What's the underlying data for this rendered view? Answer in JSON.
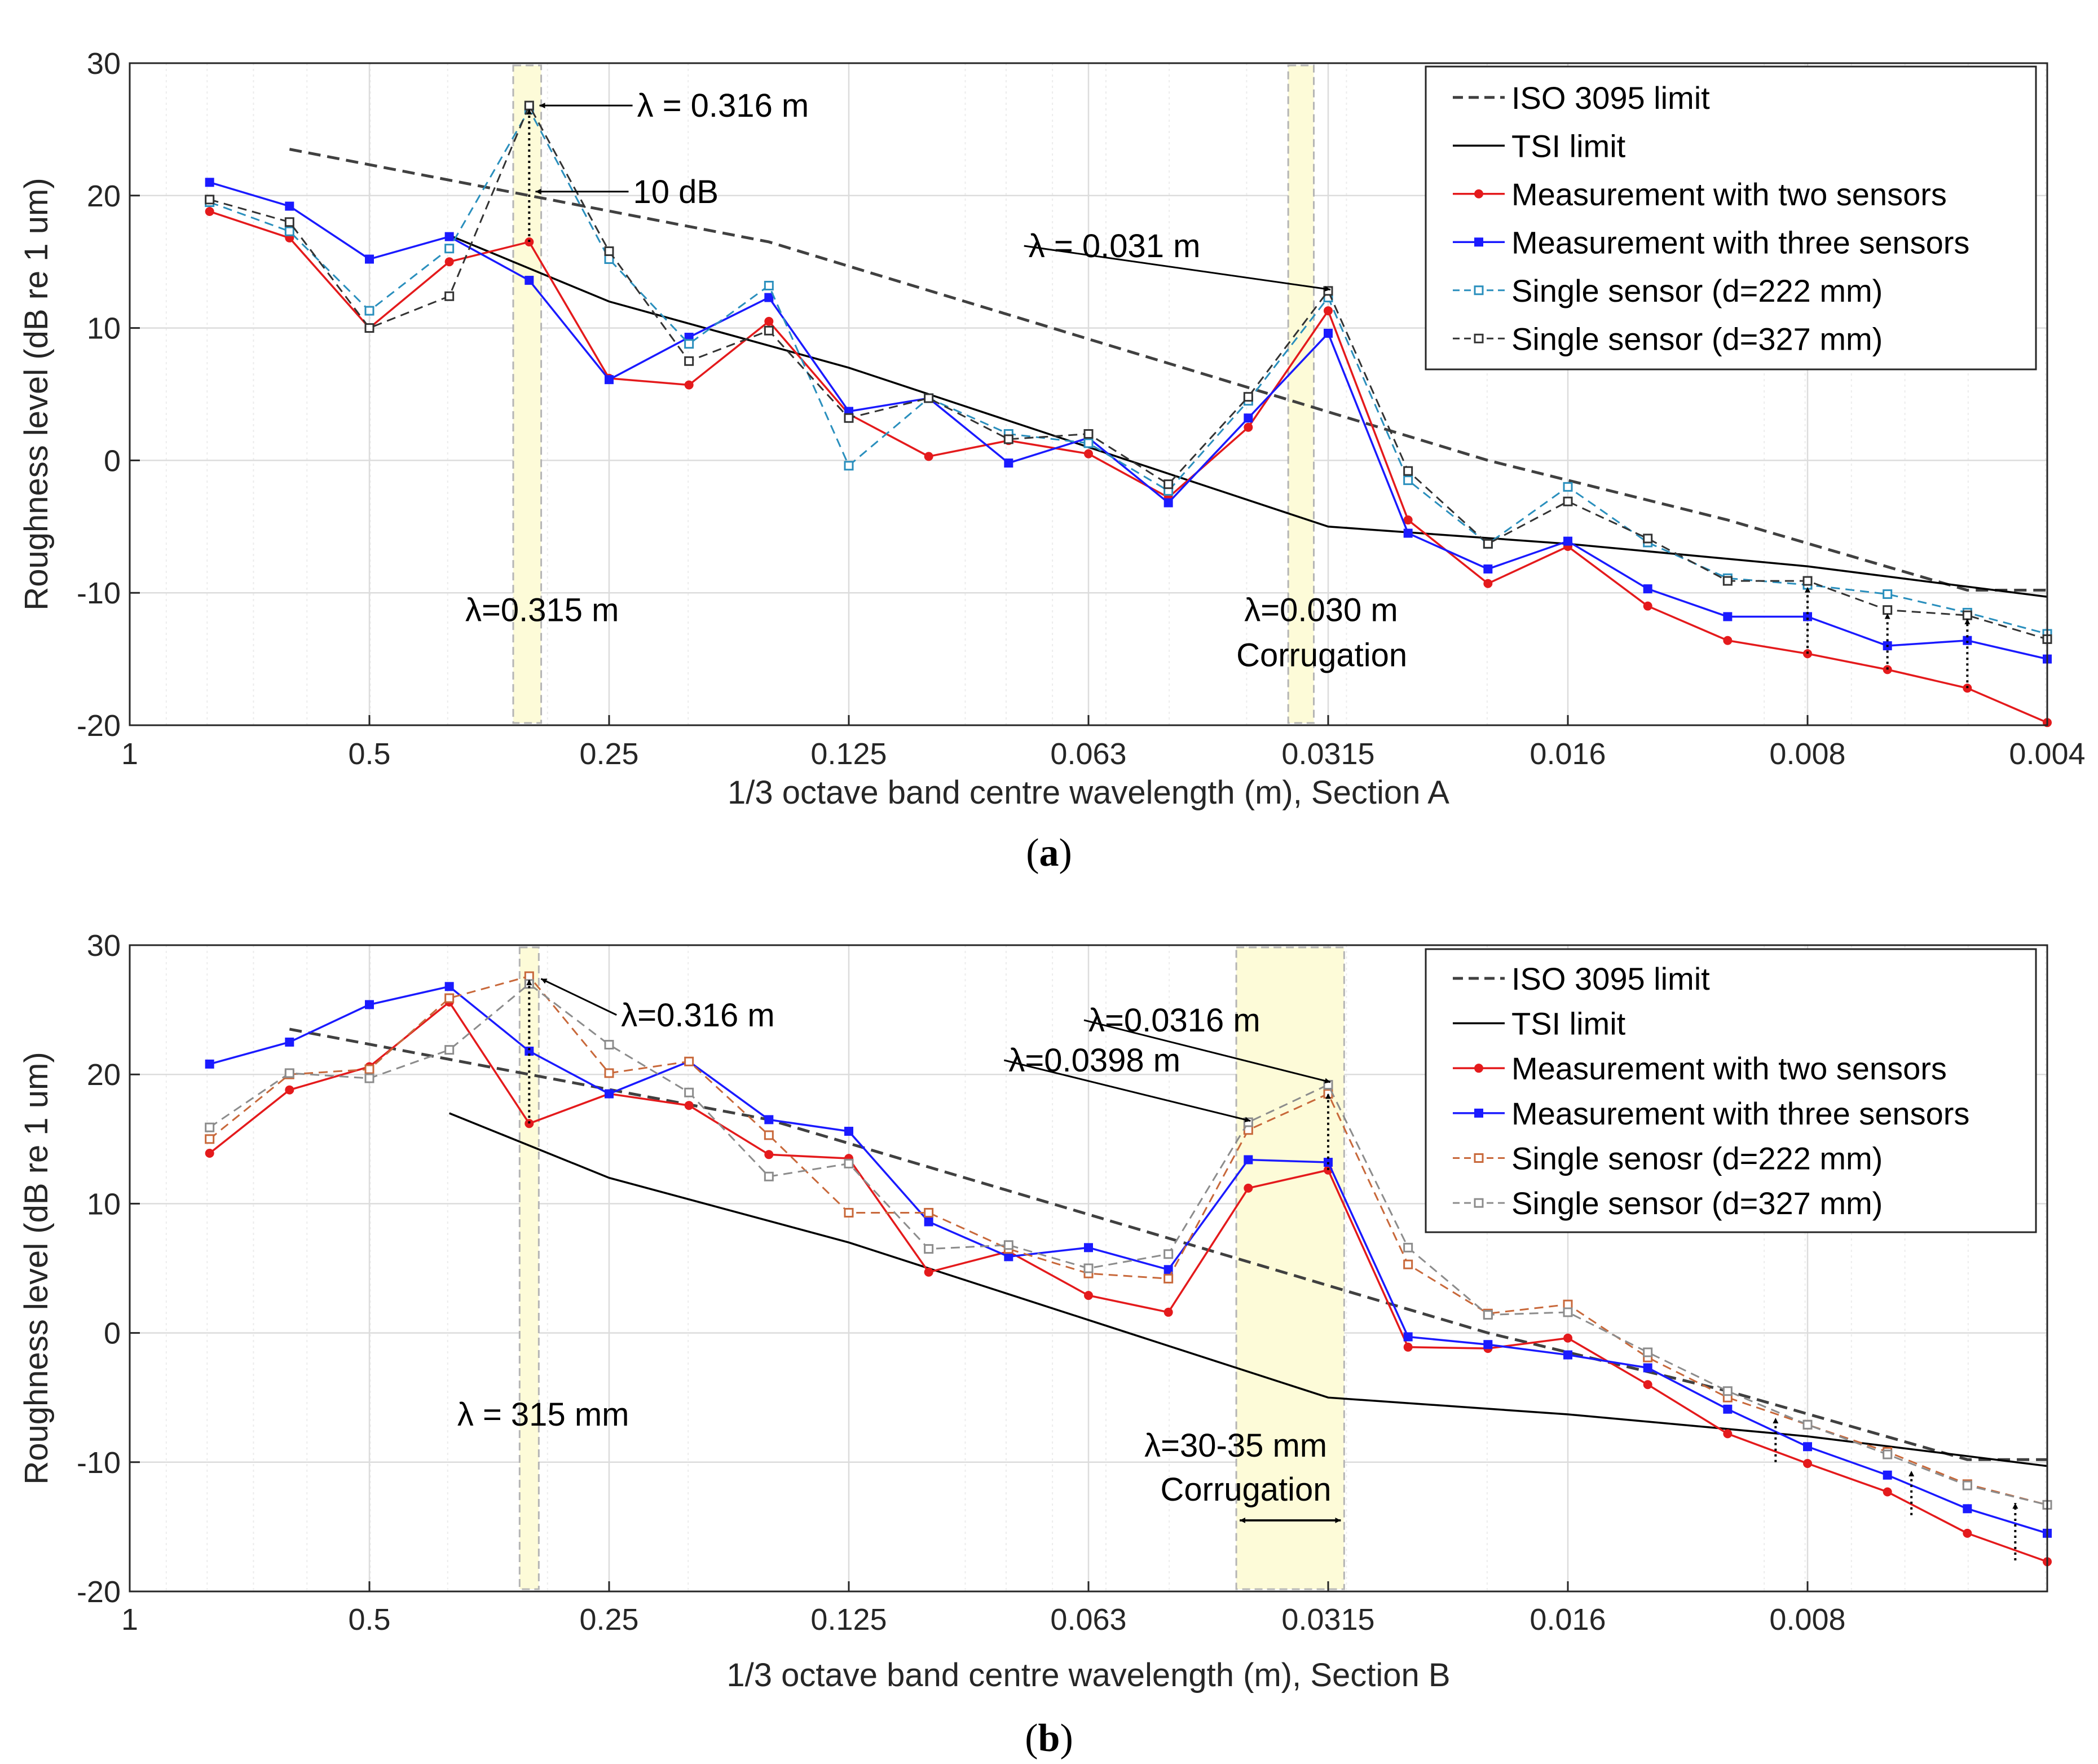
{
  "colors": {
    "iso": "#404040",
    "tsi": "#000000",
    "two": "#e41a1c",
    "three": "#1a1aff",
    "a_d222": "#2a8fbd",
    "a_d327": "#333333",
    "b_d222": "#c8683a",
    "b_d327": "#8c8c8c",
    "band": "#fdfbd8",
    "bandEdge": "#b5b5b5"
  },
  "chart_data": [
    {
      "id": "a",
      "type": "line",
      "caption": "a",
      "xlabel": "1/3 octave band centre wavelength (m), Section A",
      "ylabel": "Roughness level (dB re 1 um)",
      "ylim": [
        -20,
        30
      ],
      "yticks": [
        -20,
        -10,
        0,
        10,
        20,
        30
      ],
      "xrange_bands": [
        0,
        24
      ],
      "xticks": [
        {
          "band": 0,
          "label": "1"
        },
        {
          "band": 3,
          "label": "0.5"
        },
        {
          "band": 6,
          "label": "0.25"
        },
        {
          "band": 9,
          "label": "0.125"
        },
        {
          "band": 12,
          "label": "0.063"
        },
        {
          "band": 15,
          "label": "0.0315"
        },
        {
          "band": 18,
          "label": "0.016"
        },
        {
          "band": 21,
          "label": "0.008"
        },
        {
          "band": 24,
          "label": "0.004"
        }
      ],
      "bands": [
        [
          4.8,
          5.15
        ],
        [
          14.5,
          14.82
        ]
      ],
      "series": [
        {
          "name": "ISO 3095 limit",
          "key": "iso",
          "style": "dashed",
          "marker": "none",
          "width": 5,
          "x": [
            2,
            5,
            8,
            11,
            14,
            17,
            20,
            23,
            24
          ],
          "y": [
            23.5,
            20,
            16.5,
            11,
            5.5,
            0,
            -4.5,
            -9.8,
            -9.8
          ]
        },
        {
          "name": "TSI limit",
          "key": "tsi",
          "style": "solid",
          "marker": "none",
          "width": 3.5,
          "x": [
            4,
            6,
            9,
            12,
            15,
            18,
            21,
            24
          ],
          "y": [
            17,
            12,
            7,
            1,
            -5,
            -6.3,
            -8,
            -10.3
          ]
        },
        {
          "name": "Measurement with two sensors",
          "key": "two",
          "style": "solid",
          "marker": "dot",
          "width": 3.5,
          "x": [
            1,
            2,
            3,
            4,
            5,
            6,
            7,
            8,
            9,
            10,
            11,
            12,
            13,
            14,
            15,
            16,
            17,
            18,
            19,
            20,
            21,
            22,
            23,
            24
          ],
          "y": [
            18.8,
            16.8,
            10,
            15,
            16.5,
            6.2,
            5.7,
            10.5,
            3.5,
            0.3,
            1.5,
            0.5,
            -2.8,
            2.5,
            11.3,
            -4.5,
            -9.3,
            -6.5,
            -11,
            -13.6,
            -14.6,
            -15.8,
            -17.2,
            -19.8
          ]
        },
        {
          "name": "Measurement with three sensors",
          "key": "three",
          "style": "solid",
          "marker": "square",
          "width": 3.5,
          "x": [
            1,
            2,
            3,
            4,
            5,
            6,
            7,
            8,
            9,
            10,
            11,
            12,
            13,
            14,
            15,
            16,
            17,
            18,
            19,
            20,
            21,
            22,
            23,
            24
          ],
          "y": [
            21,
            19.2,
            15.2,
            16.9,
            13.6,
            6.1,
            9.3,
            12.3,
            3.7,
            4.7,
            -0.2,
            1.7,
            -3.2,
            3.2,
            9.6,
            -5.5,
            -8.2,
            -6.1,
            -9.7,
            -11.8,
            -11.8,
            -14,
            -13.6,
            -15
          ]
        },
        {
          "name": "Single sensor (d=222 mm)",
          "key": "a_d222",
          "style": "dashed",
          "marker": "open",
          "width": 3,
          "x": [
            1,
            2,
            3,
            4,
            5,
            6,
            7,
            8,
            9,
            10,
            11,
            12,
            13,
            14,
            15,
            16,
            17,
            18,
            19,
            20,
            21,
            22,
            23,
            24
          ],
          "y": [
            19.5,
            17.3,
            11.3,
            16,
            26.5,
            15.2,
            8.8,
            13.2,
            -0.4,
            4.7,
            2,
            1.3,
            -2.3,
            4.5,
            12.3,
            -1.5,
            -6.3,
            -2,
            -6.2,
            -8.9,
            -9.4,
            -10.1,
            -11.5,
            -13.1
          ]
        },
        {
          "name": "Single sensor (d=327 mm)",
          "key": "a_d327",
          "style": "dashed",
          "marker": "open",
          "width": 3,
          "x": [
            1,
            2,
            3,
            4,
            5,
            6,
            7,
            8,
            9,
            10,
            11,
            12,
            13,
            14,
            15,
            16,
            17,
            18,
            19,
            20,
            21,
            22,
            23,
            24
          ],
          "y": [
            19.7,
            18,
            10,
            12.4,
            26.8,
            15.8,
            7.5,
            9.8,
            3.2,
            4.7,
            1.6,
            2,
            -1.8,
            4.8,
            12.8,
            -0.8,
            -6.3,
            -3.1,
            -5.9,
            -9.1,
            -9.1,
            -11.3,
            -11.7,
            -13.5
          ]
        }
      ],
      "arrows_dotted": [
        [
          5,
          16.5,
          26.8
        ],
        [
          21,
          -14.6,
          -9.3
        ],
        [
          22,
          -15.8,
          -11.3
        ],
        [
          23,
          -17.2,
          -11.7
        ]
      ],
      "annotations": [
        {
          "text": "λ = 0.316 m",
          "x": 6.35,
          "y": 26.8,
          "ax": 5.1,
          "ay": 26.8,
          "arrow": true
        },
        {
          "text": "10 dB",
          "x": 6.3,
          "y": 20.3,
          "ax": 5.05,
          "ay": 20.3,
          "arrow": true
        },
        {
          "text": "λ = 0.031 m",
          "x": 11.25,
          "y": 16.2,
          "ax": 15,
          "ay": 12.9,
          "arrow": true
        },
        {
          "text": "λ=0.315 m",
          "x": 4.2,
          "y": -11.3,
          "arrow": false
        },
        {
          "text": "λ=0.030 m",
          "x": 13.95,
          "y": -11.3,
          "arrow": false
        },
        {
          "text": "Corrugation",
          "x": 13.85,
          "y": -14.7,
          "arrow": false
        }
      ],
      "legend_position": "top-right"
    },
    {
      "id": "b",
      "type": "line",
      "caption": "b",
      "xlabel": "1/3 octave band centre wavelength (m), Section B",
      "ylabel": "Roughness level (dB re 1 um)",
      "ylim": [
        -20,
        30
      ],
      "yticks": [
        -20,
        -10,
        0,
        10,
        20,
        30
      ],
      "xrange_bands": [
        0,
        24
      ],
      "xticks": [
        {
          "band": 0,
          "label": "1"
        },
        {
          "band": 3,
          "label": "0.5"
        },
        {
          "band": 6,
          "label": "0.25"
        },
        {
          "band": 9,
          "label": "0.125"
        },
        {
          "band": 12,
          "label": "0.063"
        },
        {
          "band": 15,
          "label": "0.0315"
        },
        {
          "band": 18,
          "label": "0.016"
        },
        {
          "band": 21,
          "label": "0.008"
        }
      ],
      "bands": [
        [
          4.88,
          5.12
        ],
        [
          13.85,
          15.2
        ]
      ],
      "series": [
        {
          "name": "ISO 3095 limit",
          "key": "iso",
          "style": "dashed",
          "marker": "none",
          "width": 5,
          "x": [
            2,
            5,
            8,
            11,
            14,
            17,
            20,
            23,
            24
          ],
          "y": [
            23.5,
            20,
            16.5,
            11,
            5.5,
            0,
            -4.5,
            -9.8,
            -9.8
          ]
        },
        {
          "name": "TSI limit",
          "key": "tsi",
          "style": "solid",
          "marker": "none",
          "width": 3.5,
          "x": [
            4,
            6,
            9,
            12,
            15,
            18,
            21,
            24
          ],
          "y": [
            17,
            12,
            7,
            1,
            -5,
            -6.3,
            -8,
            -10.3
          ]
        },
        {
          "name": "Measurement with two sensors",
          "key": "two",
          "style": "solid",
          "marker": "dot",
          "width": 3.5,
          "x": [
            1,
            2,
            3,
            4,
            5,
            6,
            7,
            8,
            9,
            10,
            11,
            12,
            13,
            14,
            15,
            16,
            17,
            18,
            19,
            20,
            21,
            22,
            23,
            24
          ],
          "y": [
            13.9,
            18.8,
            20.6,
            25.6,
            16.2,
            18.5,
            17.6,
            13.8,
            13.5,
            4.7,
            6.3,
            2.9,
            1.6,
            11.2,
            12.6,
            -1.1,
            -1.2,
            -0.4,
            -4,
            -7.8,
            -10.1,
            -12.3,
            -15.5,
            -17.7
          ]
        },
        {
          "name": "Measurement with three sensors",
          "key": "three",
          "style": "solid",
          "marker": "square",
          "width": 3.5,
          "x": [
            1,
            2,
            3,
            4,
            5,
            6,
            7,
            8,
            9,
            10,
            11,
            12,
            13,
            14,
            15,
            16,
            17,
            18,
            19,
            20,
            21,
            22,
            23,
            24
          ],
          "y": [
            20.8,
            22.5,
            25.4,
            26.8,
            21.8,
            18.5,
            21,
            16.5,
            15.6,
            8.6,
            5.9,
            6.6,
            4.9,
            13.4,
            13.2,
            -0.3,
            -0.9,
            -1.7,
            -2.7,
            -5.9,
            -8.8,
            -11,
            -13.6,
            -15.5
          ]
        },
        {
          "name": "Single senosr (d=222 mm)",
          "key": "b_d222",
          "style": "dashed",
          "marker": "open",
          "width": 3,
          "x": [
            1,
            2,
            3,
            4,
            5,
            6,
            7,
            8,
            9,
            10,
            11,
            12,
            13,
            14,
            15,
            16,
            17,
            18,
            19,
            20,
            21,
            22,
            23,
            24
          ],
          "y": [
            15,
            20,
            20.4,
            25.9,
            27.6,
            20.1,
            21,
            15.3,
            9.3,
            9.3,
            6.5,
            4.6,
            4.2,
            15.7,
            18.5,
            5.3,
            1.5,
            2.2,
            -1.9,
            -5,
            -7.1,
            -9.2,
            -11.7,
            -13.3
          ]
        },
        {
          "name": "Single sensor (d=327 mm)",
          "key": "b_d327",
          "style": "dashed",
          "marker": "open",
          "width": 3,
          "x": [
            1,
            2,
            3,
            4,
            5,
            6,
            7,
            8,
            9,
            10,
            11,
            12,
            13,
            14,
            15,
            16,
            17,
            18,
            19,
            20,
            21,
            22,
            23,
            24
          ],
          "y": [
            15.9,
            20.1,
            19.7,
            21.9,
            27,
            22.3,
            18.6,
            12.1,
            13.1,
            6.5,
            6.8,
            5,
            6.1,
            16.3,
            19.2,
            6.6,
            1.4,
            1.6,
            -1.5,
            -4.5,
            -7.1,
            -9.4,
            -11.8,
            -13.3
          ]
        }
      ],
      "arrows_dotted": [
        [
          5,
          16.2,
          27.6
        ],
        [
          15,
          12.6,
          18.8
        ],
        [
          20.6,
          -10,
          -6.3
        ],
        [
          22.3,
          -14.1,
          -10.4
        ],
        [
          23.6,
          -17.6,
          -12.9
        ]
      ],
      "annotations": [
        {
          "text": "λ=0.316 m",
          "x": 6.15,
          "y": 24.6,
          "ax": 5.12,
          "ay": 27.4,
          "arrow": true
        },
        {
          "text": "λ=0.0316 m",
          "x": 12,
          "y": 24.2,
          "ax": 15,
          "ay": 19.4,
          "arrow": true
        },
        {
          "text": "λ=0.0398 m",
          "x": 11,
          "y": 21.1,
          "ax": 14,
          "ay": 16.4,
          "arrow": true
        },
        {
          "text": "λ = 315 mm",
          "x": 4.1,
          "y": -6.3,
          "arrow": false
        },
        {
          "text": "λ=30-35 mm",
          "x": 12.7,
          "y": -8.7,
          "arrow": false
        },
        {
          "text": "Corrugation",
          "x": 12.9,
          "y": -12.1,
          "arrow": false
        }
      ],
      "corrugation_span": [
        13.85,
        15.2,
        -14.5
      ],
      "legend_position": "top-right"
    }
  ]
}
